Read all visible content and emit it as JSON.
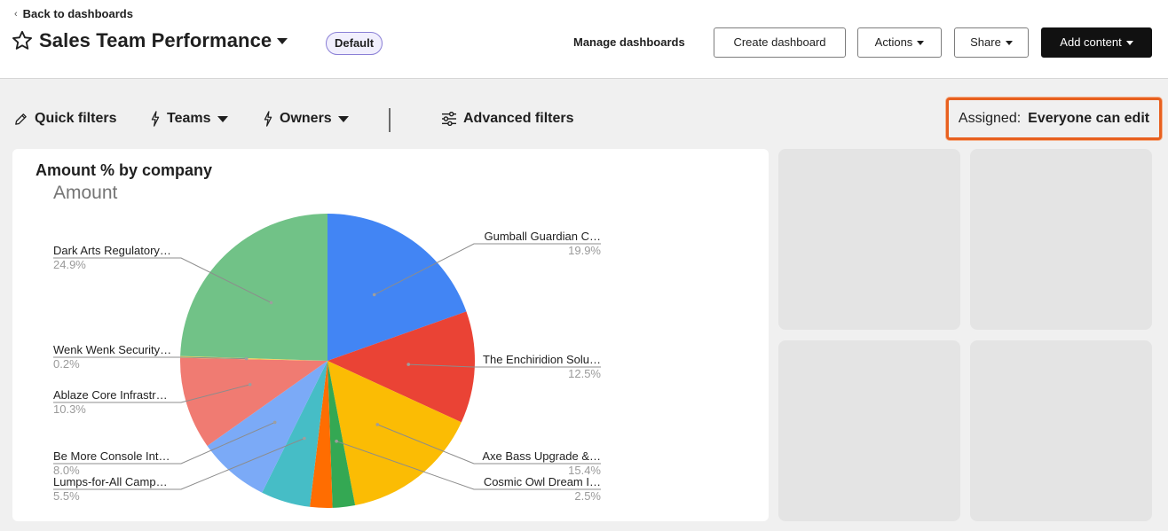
{
  "nav": {
    "back_label": "Back to dashboards"
  },
  "header": {
    "title": "Sales Team Performance",
    "badge": "Default",
    "manage_label": "Manage dashboards",
    "create_label": "Create dashboard",
    "actions_label": "Actions",
    "share_label": "Share",
    "add_label": "Add content"
  },
  "filters": {
    "quick_label": "Quick filters",
    "teams_label": "Teams",
    "owners_label": "Owners",
    "advanced_label": "Advanced filters"
  },
  "assigned": {
    "label": "Assigned:",
    "value": "Everyone can edit"
  },
  "card": {
    "title": "Amount % by company"
  },
  "colors": {
    "accent_highlight": "#e8601f",
    "primary_button": "#111111"
  },
  "chart_data": {
    "type": "pie",
    "title": "Amount",
    "slices": [
      {
        "label": "Gumball Guardian C…",
        "pct_label": "19.9%",
        "value": 19.9,
        "color": "#4285f4"
      },
      {
        "label": "The Enchiridion Solu…",
        "pct_label": "12.5%",
        "value": 12.5,
        "color": "#ea4335"
      },
      {
        "label": "Axe Bass Upgrade &…",
        "pct_label": "15.4%",
        "value": 15.4,
        "color": "#fbbc04"
      },
      {
        "label": "Cosmic Owl Dream I…",
        "pct_label": "2.5%",
        "value": 2.5,
        "color": "#34a853"
      },
      {
        "label": "",
        "pct_label": "",
        "value": 2.5,
        "color": "#ff6d01"
      },
      {
        "label": "Lumps-for-All Camp…",
        "pct_label": "5.5%",
        "value": 5.5,
        "color": "#46bdc6"
      },
      {
        "label": "Be More Console Int…",
        "pct_label": "8.0%",
        "value": 8.0,
        "color": "#7baaf7"
      },
      {
        "label": "Ablaze Core Infrastr…",
        "pct_label": "10.3%",
        "value": 10.3,
        "color": "#f07b72"
      },
      {
        "label": "Wenk Wenk Security…",
        "pct_label": "0.2%",
        "value": 0.2,
        "color": "#fcd04f"
      },
      {
        "label": "Dark Arts Regulatory…",
        "pct_label": "24.9%",
        "value": 24.9,
        "color": "#71c287"
      }
    ]
  }
}
